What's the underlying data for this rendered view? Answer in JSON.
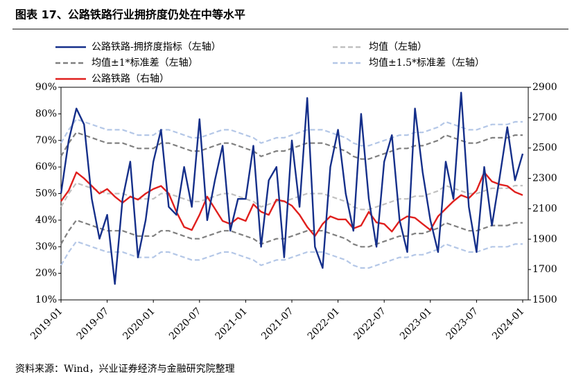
{
  "chart_data": {
    "type": "line",
    "title": "图表 17、公路铁路行业拥挤度仍处在中等水平",
    "source": "资料来源：Wind，兴业证券经济与金融研究院整理",
    "x": [
      "2019-01",
      "2019-02",
      "2019-03",
      "2019-04",
      "2019-05",
      "2019-06",
      "2019-07",
      "2019-08",
      "2019-09",
      "2019-10",
      "2019-11",
      "2019-12",
      "2020-01",
      "2020-02",
      "2020-03",
      "2020-04",
      "2020-05",
      "2020-06",
      "2020-07",
      "2020-08",
      "2020-09",
      "2020-10",
      "2020-11",
      "2020-12",
      "2021-01",
      "2021-02",
      "2021-03",
      "2021-04",
      "2021-05",
      "2021-06",
      "2021-07",
      "2021-08",
      "2021-09",
      "2021-10",
      "2021-11",
      "2021-12",
      "2022-01",
      "2022-02",
      "2022-03",
      "2022-04",
      "2022-05",
      "2022-06",
      "2022-07",
      "2022-08",
      "2022-09",
      "2022-10",
      "2022-11",
      "2022-12",
      "2023-01",
      "2023-02",
      "2023-03",
      "2023-04",
      "2023-05",
      "2023-06",
      "2023-07",
      "2023-08",
      "2023-09",
      "2023-10",
      "2023-11",
      "2023-12",
      "2024-01"
    ],
    "xticks": [
      "2019-01",
      "2019-07",
      "2020-01",
      "2020-07",
      "2021-01",
      "2021-07",
      "2022-01",
      "2022-07",
      "2023-01",
      "2023-07",
      "2024-01"
    ],
    "ylim": [
      10,
      90
    ],
    "yticks": [
      {
        "value": 10,
        "label": "10%"
      },
      {
        "value": 20,
        "label": "20%"
      },
      {
        "value": 30,
        "label": "30%"
      },
      {
        "value": 40,
        "label": "40%"
      },
      {
        "value": 50,
        "label": "50%"
      },
      {
        "value": 60,
        "label": "60%"
      },
      {
        "value": 70,
        "label": "70%"
      },
      {
        "value": 80,
        "label": "80%"
      },
      {
        "value": 90,
        "label": "90%"
      }
    ],
    "y2lim": [
      1500,
      2900
    ],
    "y2ticks": [
      1500,
      1700,
      1900,
      2100,
      2300,
      2500,
      2700,
      2900
    ],
    "series": [
      {
        "name": "公路铁路-拥挤度指标（左轴）",
        "color": "#152f8a",
        "dashed": false,
        "values": [
          50,
          70,
          82,
          76,
          48,
          33,
          42,
          16,
          48,
          62,
          26,
          40,
          62,
          74,
          45,
          42,
          60,
          45,
          78,
          40,
          55,
          68,
          36,
          48,
          48,
          68,
          30,
          55,
          60,
          26,
          70,
          45,
          86,
          30,
          22,
          60,
          74,
          50,
          36,
          80,
          48,
          30,
          62,
          72,
          40,
          28,
          82,
          58,
          40,
          28,
          62,
          48,
          88,
          45,
          28,
          60,
          38,
          56,
          75,
          55,
          65
        ]
      },
      {
        "name": "均值（左轴）",
        "color": "#c0c0c0",
        "dashed": true,
        "values": [
          45,
          50,
          54,
          53,
          52,
          51,
          50,
          50,
          50,
          49,
          48,
          48,
          48,
          50,
          50,
          49,
          48,
          47,
          47,
          48,
          49,
          50,
          50,
          49,
          48,
          47,
          45,
          46,
          47,
          47,
          48,
          49,
          50,
          50,
          50,
          49,
          48,
          47,
          45,
          44,
          44,
          45,
          46,
          47,
          48,
          48,
          49,
          49,
          50,
          51,
          53,
          52,
          51,
          50,
          50,
          51,
          52,
          52,
          52,
          53,
          53
        ]
      },
      {
        "name": "均值±1*标准差（左轴）",
        "color": "#808080",
        "dashed": true,
        "values": [
          64,
          69,
          73,
          72,
          71,
          70,
          69,
          69,
          69,
          68,
          67,
          67,
          67,
          69,
          69,
          68,
          67,
          66,
          66,
          67,
          68,
          69,
          69,
          68,
          67,
          66,
          64,
          65,
          66,
          66,
          67,
          68,
          69,
          69,
          69,
          68,
          67,
          66,
          64,
          63,
          63,
          64,
          65,
          66,
          67,
          67,
          68,
          68,
          69,
          70,
          72,
          71,
          70,
          69,
          69,
          70,
          71,
          71,
          71,
          72,
          72
        ],
        "lower": [
          31,
          36,
          40,
          39,
          38,
          37,
          36,
          36,
          36,
          35,
          34,
          34,
          34,
          36,
          36,
          35,
          34,
          33,
          33,
          34,
          35,
          36,
          36,
          35,
          34,
          33,
          31,
          32,
          33,
          33,
          34,
          35,
          36,
          36,
          36,
          35,
          34,
          33,
          31,
          30,
          30,
          31,
          32,
          33,
          34,
          34,
          35,
          35,
          36,
          37,
          39,
          38,
          37,
          36,
          36,
          37,
          38,
          38,
          38,
          39,
          39
        ]
      },
      {
        "name": "均值±1.5*标准差（左轴）",
        "color": "#b4c7e7",
        "dashed": true,
        "values": [
          69,
          74,
          78,
          77,
          76,
          75,
          74,
          74,
          74,
          73,
          72,
          72,
          72,
          74,
          74,
          73,
          72,
          71,
          71,
          72,
          73,
          74,
          74,
          73,
          72,
          71,
          69,
          70,
          71,
          71,
          72,
          73,
          74,
          74,
          74,
          73,
          72,
          71,
          69,
          68,
          68,
          69,
          70,
          71,
          72,
          72,
          73,
          73,
          74,
          75,
          77,
          76,
          75,
          74,
          74,
          75,
          76,
          76,
          76,
          77,
          77
        ],
        "lower": [
          23,
          28,
          32,
          31,
          30,
          29,
          28,
          28,
          28,
          27,
          26,
          26,
          26,
          28,
          28,
          27,
          26,
          25,
          25,
          26,
          27,
          28,
          28,
          27,
          26,
          25,
          23,
          24,
          25,
          25,
          26,
          27,
          28,
          28,
          28,
          27,
          26,
          25,
          23,
          22,
          22,
          23,
          24,
          25,
          26,
          26,
          27,
          27,
          28,
          29,
          31,
          30,
          29,
          28,
          28,
          29,
          30,
          30,
          30,
          31,
          31
        ]
      },
      {
        "name": "公路铁路（右轴）",
        "color": "#e0201e",
        "dashed": false,
        "axis": "y2",
        "values": [
          2150,
          2220,
          2340,
          2300,
          2250,
          2200,
          2230,
          2180,
          2140,
          2180,
          2160,
          2200,
          2230,
          2250,
          2200,
          2080,
          1980,
          1960,
          2060,
          2180,
          2100,
          2020,
          2000,
          2040,
          2020,
          2130,
          2080,
          2060,
          2160,
          2150,
          2120,
          2060,
          1980,
          1920,
          2000,
          2050,
          2030,
          2030,
          1970,
          1990,
          2080,
          2010,
          2000,
          1950,
          2020,
          2050,
          2040,
          2000,
          1960,
          2050,
          2100,
          2150,
          2190,
          2170,
          2220,
          2340,
          2280,
          2260,
          2250,
          2210,
          2190
        ]
      }
    ]
  }
}
